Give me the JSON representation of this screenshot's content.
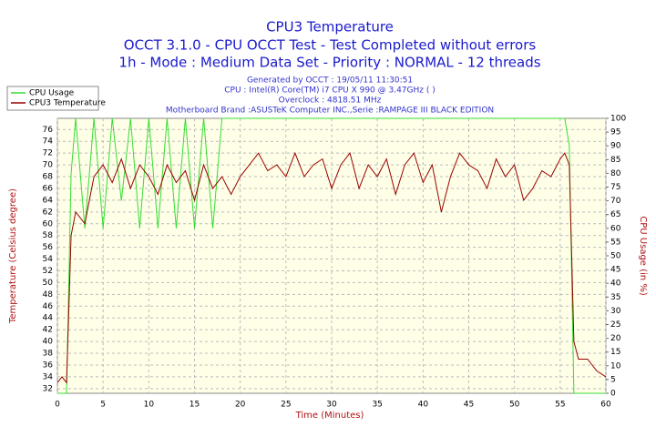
{
  "chart_data": {
    "type": "line",
    "title": "CPU3 Temperature",
    "subtitle": [
      "OCCT 3.1.0 - CPU OCCT Test - Test Completed without errors",
      "1h - Mode : Medium Data Set - Priority : NORMAL - 12 threads"
    ],
    "annotations": [
      "Generated by OCCT : 19/05/11 11:30:51",
      "CPU : Intel(R) Core(TM) i7 CPU X 990 @ 3.47GHz (  )",
      "Overclock : 4818.51 MHz",
      "Motherboard Brand :ASUSTeK Computer INC.,Serie :RAMPAGE III BLACK EDITION"
    ],
    "x_label": "Time (Minutes)",
    "y_label": "Temperature (Celsius degree)",
    "y2_label": "CPU Usage (in %)",
    "x": [
      0,
      0.5,
      1,
      1.5,
      2,
      3,
      4,
      5,
      6,
      7,
      8,
      9,
      10,
      11,
      12,
      13,
      14,
      15,
      16,
      17,
      18,
      19,
      20,
      21,
      22,
      23,
      24,
      25,
      26,
      27,
      28,
      29,
      30,
      31,
      32,
      33,
      34,
      35,
      36,
      37,
      38,
      39,
      40,
      41,
      42,
      43,
      44,
      45,
      46,
      47,
      48,
      49,
      50,
      51,
      52,
      53,
      54,
      55,
      55.5,
      56,
      56.5,
      57,
      58,
      59,
      60
    ],
    "series": [
      {
        "name": "CPU Usage",
        "color": "#33dd33",
        "axis": "y2",
        "values": [
          0,
          0,
          0,
          80,
          100,
          60,
          100,
          60,
          100,
          70,
          100,
          60,
          100,
          60,
          100,
          60,
          100,
          60,
          100,
          60,
          100,
          100,
          100,
          100,
          100,
          100,
          100,
          100,
          100,
          100,
          100,
          100,
          100,
          100,
          100,
          100,
          100,
          100,
          100,
          100,
          100,
          100,
          100,
          100,
          100,
          100,
          100,
          100,
          100,
          100,
          100,
          100,
          100,
          100,
          100,
          100,
          100,
          100,
          100,
          90,
          0,
          0,
          0,
          0,
          0
        ]
      },
      {
        "name": "CPU3 Temperature",
        "color": "#990000",
        "values": [
          33,
          34,
          33,
          58,
          62,
          60,
          68,
          70,
          67,
          71,
          66,
          70,
          68,
          65,
          70,
          67,
          69,
          64,
          70,
          66,
          68,
          65,
          68,
          70,
          72,
          69,
          70,
          68,
          72,
          68,
          70,
          71,
          66,
          70,
          72,
          66,
          70,
          68,
          71,
          65,
          70,
          72,
          67,
          70,
          62,
          68,
          72,
          70,
          69,
          66,
          71,
          68,
          70,
          64,
          66,
          69,
          68,
          71,
          72,
          70,
          40,
          37,
          37,
          35,
          34
        ]
      }
    ],
    "xlim": [
      0,
      60
    ],
    "xticks": [
      0,
      5,
      10,
      15,
      20,
      25,
      30,
      35,
      40,
      45,
      50,
      55,
      60
    ],
    "ylim": [
      31.2,
      77.9
    ],
    "yticks": [
      32,
      34,
      36,
      38,
      40,
      42,
      44,
      46,
      48,
      50,
      52,
      54,
      56,
      58,
      60,
      62,
      64,
      66,
      68,
      70,
      72,
      74,
      76
    ],
    "y2lim": [
      0,
      100
    ],
    "y2ticks": [
      0,
      5,
      10,
      15,
      20,
      25,
      30,
      35,
      40,
      45,
      50,
      55,
      60,
      65,
      70,
      75,
      80,
      85,
      90,
      95,
      100
    ],
    "grid": true,
    "legend": "top-left"
  }
}
